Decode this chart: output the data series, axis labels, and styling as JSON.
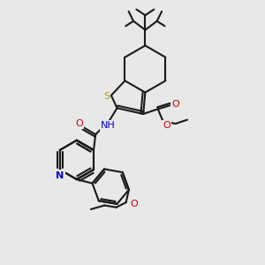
{
  "bg_color": "#e8e8e8",
  "bond_color": "#1a1a1a",
  "S_color": "#b8a000",
  "N_color": "#0000cc",
  "O_color": "#cc0000",
  "lw": 1.5,
  "dpi": 100,
  "xlim": [
    30,
    270
  ],
  "ylim": [
    20,
    290
  ]
}
